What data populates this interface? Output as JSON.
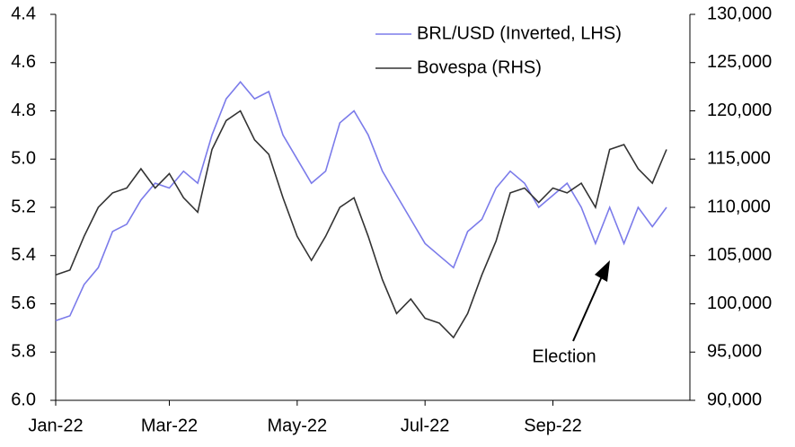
{
  "chart_data": {
    "type": "line",
    "categories": [
      "Jan-22",
      null,
      null,
      null,
      null,
      null,
      null,
      null,
      "Mar-22",
      null,
      null,
      null,
      null,
      null,
      null,
      null,
      null,
      "May-22",
      null,
      null,
      null,
      null,
      null,
      null,
      null,
      null,
      "Jul-22",
      null,
      null,
      null,
      null,
      null,
      null,
      null,
      null,
      "Sep-22",
      null,
      null,
      null,
      null,
      null,
      null,
      null,
      null
    ],
    "series": [
      {
        "name": "BRL/USD (Inverted, LHS)",
        "color": "#7b7bea",
        "axis": "y",
        "values": [
          5.67,
          5.65,
          5.52,
          5.45,
          5.3,
          5.27,
          5.17,
          5.1,
          5.12,
          5.05,
          5.1,
          4.9,
          4.75,
          4.68,
          4.75,
          4.72,
          4.9,
          5.0,
          5.1,
          5.05,
          4.85,
          4.8,
          4.9,
          5.05,
          5.15,
          5.25,
          5.35,
          5.4,
          5.45,
          5.3,
          5.25,
          5.12,
          5.05,
          5.1,
          5.2,
          5.15,
          5.1,
          5.2,
          5.35,
          5.2,
          5.35,
          5.2,
          5.28,
          5.2
        ]
      },
      {
        "name": "Bovespa (RHS)",
        "color": "#333333",
        "axis": "y2",
        "values": [
          103000,
          103500,
          107000,
          110000,
          111500,
          112000,
          114000,
          112000,
          113500,
          111000,
          109500,
          116000,
          119000,
          120000,
          117000,
          115500,
          111000,
          107000,
          104500,
          107000,
          110000,
          111000,
          107000,
          102500,
          99000,
          100500,
          98500,
          98000,
          96500,
          99000,
          103000,
          106500,
          111500,
          112000,
          110500,
          112000,
          111500,
          112500,
          110000,
          116000,
          116500,
          114000,
          112500,
          116000
        ]
      }
    ],
    "ylim": [
      6.0,
      4.4
    ],
    "y_inverted": true,
    "yticks": [
      4.4,
      4.6,
      4.8,
      {
        "value": 5,
        "label": "5.0"
      },
      5.2,
      5.4,
      5.6,
      5.8,
      {
        "value": 6,
        "label": "6.0"
      }
    ],
    "y2lim": [
      90000,
      130000
    ],
    "y2ticks": [
      {
        "value": 90000,
        "label": "90,000"
      },
      {
        "value": 95000,
        "label": "95,000"
      },
      {
        "value": 100000,
        "label": "100,000"
      },
      {
        "value": 105000,
        "label": "105,000"
      },
      {
        "value": 110000,
        "label": "110,000"
      },
      {
        "value": 115000,
        "label": "115,000"
      },
      {
        "value": 120000,
        "label": "120,000"
      },
      {
        "value": 125000,
        "label": "125,000"
      },
      {
        "value": 130000,
        "label": "130,000"
      }
    ],
    "legend": "upper right",
    "grid": false,
    "annotation": "Election"
  }
}
